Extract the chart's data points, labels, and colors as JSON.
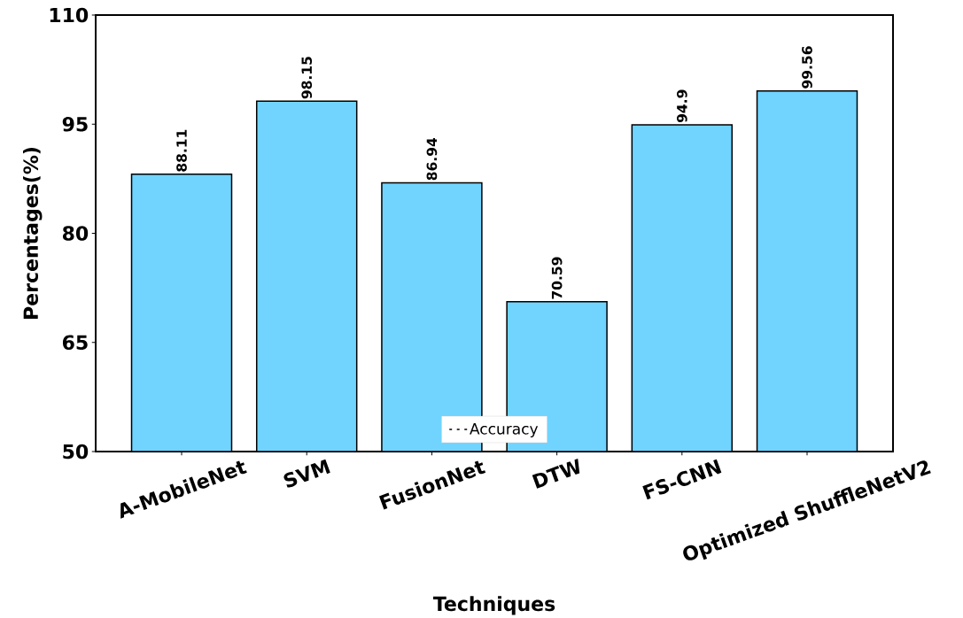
{
  "chart_data": {
    "type": "bar",
    "xlabel": "Techniques",
    "ylabel": "Percentages(%)",
    "categories": [
      "A-MobileNet",
      "SVM",
      "FusionNet",
      "DTW",
      "FS-CNN",
      "Optimized ShuffleNetV2"
    ],
    "series": [
      {
        "name": "Accuracy",
        "color": "#70d4ff",
        "values": [
          88.11,
          98.15,
          86.94,
          70.59,
          94.9,
          99.56
        ]
      }
    ],
    "ylim": [
      50,
      110
    ],
    "yticks": [
      50,
      65,
      80,
      95,
      110
    ],
    "data_labels": true,
    "legend": "bottom"
  }
}
